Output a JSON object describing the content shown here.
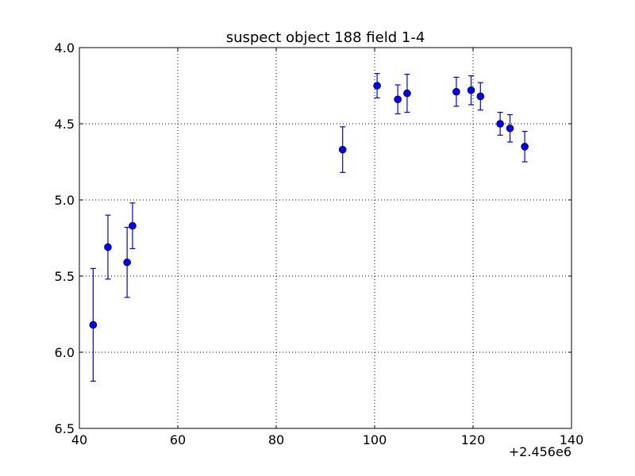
{
  "chart_data": {
    "type": "scatter",
    "title": "suspect object 188 field 1-4",
    "xlabel": "",
    "ylabel": "",
    "xlim": [
      40,
      140
    ],
    "ylim": [
      4.0,
      6.5
    ],
    "y_inverted": true,
    "x_offset_label": "+2.456e6",
    "x_ticks": [
      "40",
      "60",
      "80",
      "100",
      "120",
      "140"
    ],
    "y_ticks": [
      "4.0",
      "4.5",
      "5.0",
      "5.5",
      "6.0",
      "6.5"
    ],
    "grid": true,
    "marker_color": "#0000ff",
    "series": [
      {
        "points": [
          {
            "x": 42.8,
            "y": 5.82,
            "err": 0.37
          },
          {
            "x": 45.8,
            "y": 5.31,
            "err": 0.21
          },
          {
            "x": 49.7,
            "y": 5.41,
            "err": 0.23
          },
          {
            "x": 50.8,
            "y": 5.17,
            "err": 0.15
          },
          {
            "x": 93.5,
            "y": 4.67,
            "err": 0.15
          },
          {
            "x": 100.5,
            "y": 4.25,
            "err": 0.08
          },
          {
            "x": 104.7,
            "y": 4.34,
            "err": 0.095
          },
          {
            "x": 106.6,
            "y": 4.3,
            "err": 0.125
          },
          {
            "x": 116.6,
            "y": 4.29,
            "err": 0.095
          },
          {
            "x": 119.6,
            "y": 4.28,
            "err": 0.095
          },
          {
            "x": 121.5,
            "y": 4.32,
            "err": 0.09
          },
          {
            "x": 125.5,
            "y": 4.5,
            "err": 0.075
          },
          {
            "x": 127.5,
            "y": 4.53,
            "err": 0.09
          },
          {
            "x": 130.5,
            "y": 4.65,
            "err": 0.1
          }
        ]
      }
    ]
  }
}
